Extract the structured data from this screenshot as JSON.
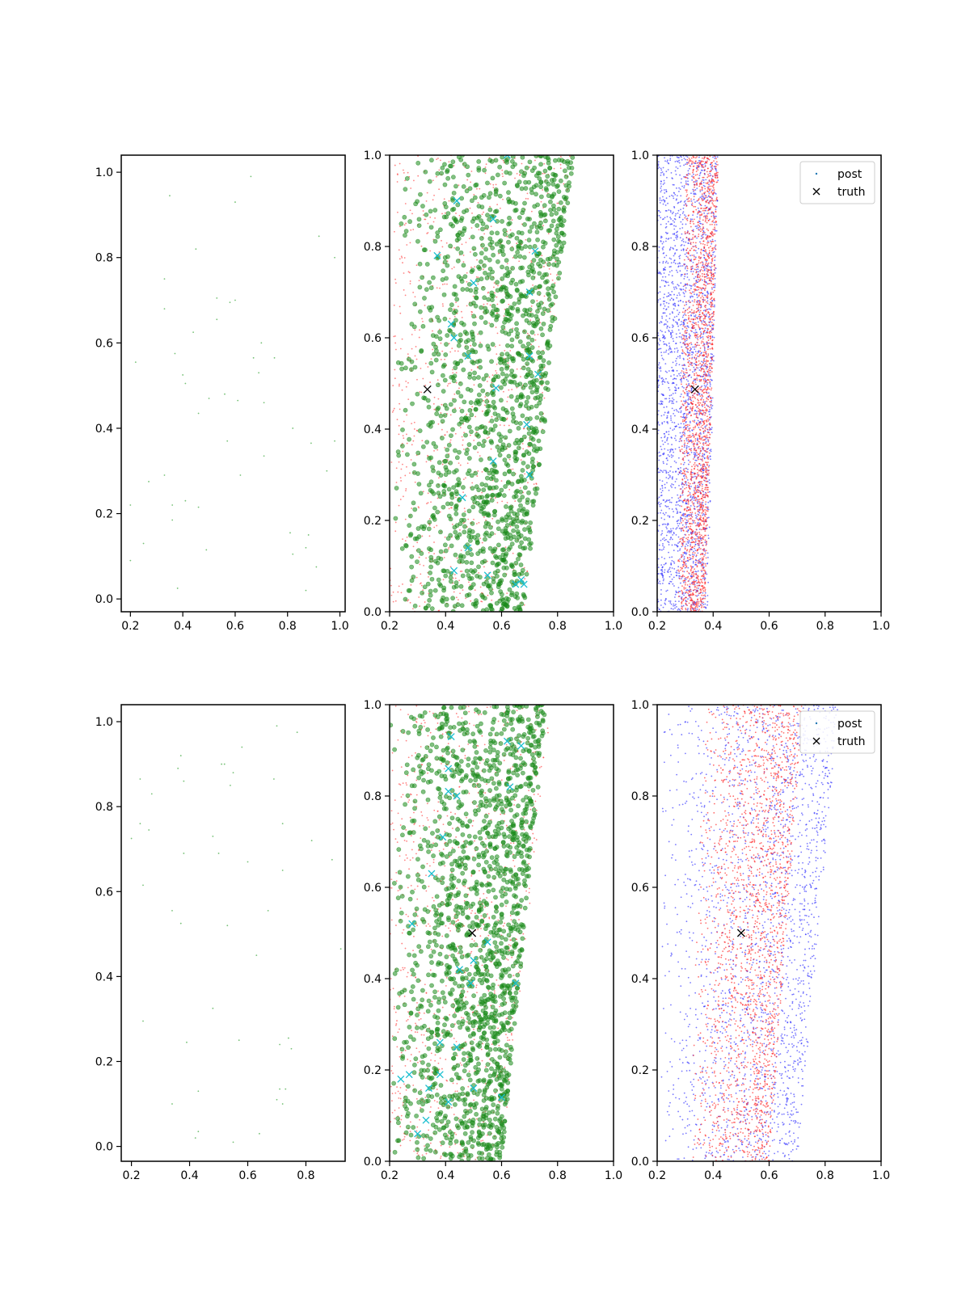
{
  "chart_data": [
    {
      "type": "scatter",
      "row": 0,
      "col": 0,
      "xlim": [
        0.165,
        1.02
      ],
      "ylim": [
        -0.03,
        1.04
      ],
      "xticks": [
        0.2,
        0.4,
        0.6,
        0.8,
        1.0
      ],
      "xtick_labels": [
        "0.2",
        "0.4",
        "0.6",
        "0.8",
        "1.0"
      ],
      "yticks": [
        0.0,
        0.2,
        0.4,
        0.6,
        0.8,
        1.0
      ],
      "ytick_labels": [
        "0.0",
        "0.2",
        "0.4",
        "0.6",
        "0.8",
        "1.0"
      ],
      "series": [
        {
          "color": "#2ca02c",
          "marker": "dot",
          "points": [
            [
              0.66,
              0.99
            ],
            [
              0.35,
              0.945
            ],
            [
              0.6,
              0.93
            ],
            [
              0.92,
              0.85
            ],
            [
              0.98,
              0.8
            ],
            [
              0.45,
              0.82
            ],
            [
              0.33,
              0.75
            ],
            [
              0.53,
              0.705
            ],
            [
              0.58,
              0.695
            ],
            [
              0.6,
              0.7
            ],
            [
              0.33,
              0.68
            ],
            [
              0.53,
              0.655
            ],
            [
              0.44,
              0.625
            ],
            [
              0.7,
              0.6
            ],
            [
              0.37,
              0.575
            ],
            [
              0.67,
              0.565
            ],
            [
              0.75,
              0.565
            ],
            [
              0.22,
              0.555
            ],
            [
              0.69,
              0.53
            ],
            [
              0.4,
              0.525
            ],
            [
              0.41,
              0.505
            ],
            [
              0.56,
              0.48
            ],
            [
              0.5,
              0.47
            ],
            [
              0.61,
              0.465
            ],
            [
              0.71,
              0.46
            ],
            [
              0.46,
              0.435
            ],
            [
              0.82,
              0.4
            ],
            [
              0.57,
              0.37
            ],
            [
              0.89,
              0.365
            ],
            [
              0.98,
              0.37
            ],
            [
              0.71,
              0.335
            ],
            [
              0.95,
              0.3
            ],
            [
              0.33,
              0.29
            ],
            [
              0.62,
              0.29
            ],
            [
              0.27,
              0.275
            ],
            [
              0.41,
              0.23
            ],
            [
              0.36,
              0.22
            ],
            [
              0.46,
              0.215
            ],
            [
              0.2,
              0.22
            ],
            [
              0.36,
              0.185
            ],
            [
              0.81,
              0.155
            ],
            [
              0.88,
              0.15
            ],
            [
              0.25,
              0.13
            ],
            [
              0.87,
              0.12
            ],
            [
              0.49,
              0.115
            ],
            [
              0.82,
              0.105
            ],
            [
              0.2,
              0.09
            ],
            [
              0.91,
              0.075
            ],
            [
              0.38,
              0.025
            ],
            [
              0.87,
              0.02
            ]
          ]
        }
      ]
    },
    {
      "type": "scatter",
      "row": 0,
      "col": 1,
      "xlim": [
        0.2,
        1.0
      ],
      "ylim": [
        0.0,
        1.0
      ],
      "xticks": [
        0.2,
        0.4,
        0.6,
        0.8,
        1.0
      ],
      "xtick_labels": [
        "0.2",
        "0.4",
        "0.6",
        "0.8",
        "1.0"
      ],
      "yticks": [
        0.0,
        0.2,
        0.4,
        0.6,
        0.8,
        1.0
      ],
      "ytick_labels": [
        "0.0",
        "0.2",
        "0.4",
        "0.6",
        "0.8",
        "1.0"
      ],
      "series": [
        {
          "color": "#ff4040",
          "marker": "dot",
          "cloud": {
            "n": 900,
            "yrange": [
              0.0,
              1.0
            ],
            "left": [
              0.2,
              0.22
            ],
            "right": [
              0.68,
              0.85
            ],
            "seed": 11
          }
        },
        {
          "color": "#1a8a1a",
          "marker": "circle",
          "cloud": {
            "n": 1500,
            "yrange": [
              0.0,
              1.0
            ],
            "left": [
              0.2,
              0.22
            ],
            "right": [
              0.68,
              0.86
            ],
            "skew": 0.55,
            "seed": 12
          }
        },
        {
          "color": "#17becf",
          "marker": "x",
          "points": [
            [
              0.37,
              0.78
            ],
            [
              0.44,
              0.9
            ],
            [
              0.57,
              0.86
            ],
            [
              0.62,
              1.0
            ],
            [
              0.72,
              0.79
            ],
            [
              0.5,
              0.72
            ],
            [
              0.7,
              0.7
            ],
            [
              0.42,
              0.63
            ],
            [
              0.48,
              0.56
            ],
            [
              0.7,
              0.56
            ],
            [
              0.43,
              0.6
            ],
            [
              0.58,
              0.49
            ],
            [
              0.73,
              0.52
            ],
            [
              0.69,
              0.41
            ],
            [
              0.57,
              0.33
            ],
            [
              0.7,
              0.3
            ],
            [
              0.48,
              0.14
            ],
            [
              0.55,
              0.08
            ],
            [
              0.43,
              0.09
            ],
            [
              0.67,
              0.07
            ],
            [
              0.65,
              0.06
            ],
            [
              0.68,
              0.06
            ],
            [
              0.46,
              0.25
            ]
          ]
        },
        {
          "color": "#000000",
          "marker": "x",
          "points": [
            [
              0.335,
              0.487
            ]
          ]
        }
      ]
    },
    {
      "type": "scatter",
      "row": 0,
      "col": 2,
      "xlim": [
        0.2,
        1.0
      ],
      "ylim": [
        0.0,
        1.0
      ],
      "xticks": [
        0.2,
        0.4,
        0.6,
        0.8,
        1.0
      ],
      "xtick_labels": [
        "0.2",
        "0.4",
        "0.6",
        "0.8",
        "1.0"
      ],
      "yticks": [
        0.0,
        0.2,
        0.4,
        0.6,
        0.8,
        1.0
      ],
      "ytick_labels": [
        "0.0",
        "0.2",
        "0.4",
        "0.6",
        "0.8",
        "1.0"
      ],
      "legend": {
        "placement": "top-right",
        "entries": [
          {
            "label": "post",
            "color": "#1f77b4",
            "marker": "dot"
          },
          {
            "label": "truth",
            "color": "#000000",
            "marker": "x"
          }
        ]
      },
      "series": [
        {
          "color": "#3030ff",
          "marker": "dot",
          "cloud": {
            "n": 2300,
            "yrange": [
              0.0,
              1.0
            ],
            "left": [
              0.2,
              0.2
            ],
            "right": [
              0.38,
              0.42
            ],
            "seed": 21
          }
        },
        {
          "color": "#ff2020",
          "marker": "dot",
          "cloud": {
            "n": 2000,
            "yrange": [
              0.0,
              1.0
            ],
            "left": [
              0.27,
              0.3
            ],
            "right": [
              0.37,
              0.42
            ],
            "skew": 0.7,
            "seed": 22
          }
        },
        {
          "color": "#000000",
          "marker": "x",
          "points": [
            [
              0.335,
              0.487
            ]
          ]
        }
      ]
    },
    {
      "type": "scatter",
      "row": 1,
      "col": 0,
      "xlim": [
        0.165,
        0.935
      ],
      "ylim": [
        -0.035,
        1.04
      ],
      "xticks": [
        0.2,
        0.4,
        0.6,
        0.8
      ],
      "xtick_labels": [
        "0.2",
        "0.4",
        "0.6",
        "0.8"
      ],
      "yticks": [
        0.0,
        0.2,
        0.4,
        0.6,
        0.8,
        1.0
      ],
      "ytick_labels": [
        "0.0",
        "0.2",
        "0.4",
        "0.6",
        "0.8",
        "1.0"
      ],
      "series": [
        {
          "color": "#2ca02c",
          "marker": "dot",
          "points": [
            [
              0.7,
              0.99
            ],
            [
              0.77,
              0.975
            ],
            [
              0.58,
              0.94
            ],
            [
              0.37,
              0.92
            ],
            [
              0.51,
              0.9
            ],
            [
              0.36,
              0.89
            ],
            [
              0.52,
              0.9
            ],
            [
              0.55,
              0.88
            ],
            [
              0.23,
              0.865
            ],
            [
              0.38,
              0.86
            ],
            [
              0.69,
              0.865
            ],
            [
              0.54,
              0.85
            ],
            [
              0.27,
              0.83
            ],
            [
              0.72,
              0.76
            ],
            [
              0.23,
              0.76
            ],
            [
              0.26,
              0.745
            ],
            [
              0.48,
              0.73
            ],
            [
              0.2,
              0.725
            ],
            [
              0.82,
              0.72
            ],
            [
              0.38,
              0.69
            ],
            [
              0.5,
              0.69
            ],
            [
              0.6,
              0.67
            ],
            [
              0.89,
              0.675
            ],
            [
              0.72,
              0.65
            ],
            [
              0.24,
              0.615
            ],
            [
              0.34,
              0.555
            ],
            [
              0.67,
              0.555
            ],
            [
              0.37,
              0.525
            ],
            [
              0.53,
              0.52
            ],
            [
              0.92,
              0.465
            ],
            [
              0.63,
              0.45
            ],
            [
              0.48,
              0.325
            ],
            [
              0.24,
              0.295
            ],
            [
              0.39,
              0.245
            ],
            [
              0.57,
              0.25
            ],
            [
              0.71,
              0.24
            ],
            [
              0.74,
              0.255
            ],
            [
              0.75,
              0.23
            ],
            [
              0.71,
              0.135
            ],
            [
              0.73,
              0.135
            ],
            [
              0.43,
              0.13
            ],
            [
              0.7,
              0.11
            ],
            [
              0.72,
              0.1
            ],
            [
              0.34,
              0.1
            ],
            [
              0.43,
              0.035
            ],
            [
              0.42,
              0.02
            ],
            [
              0.55,
              0.01
            ],
            [
              0.64,
              0.03
            ]
          ]
        }
      ]
    },
    {
      "type": "scatter",
      "row": 1,
      "col": 1,
      "xlim": [
        0.2,
        1.0
      ],
      "ylim": [
        0.0,
        1.0
      ],
      "xticks": [
        0.2,
        0.4,
        0.6,
        0.8,
        1.0
      ],
      "xtick_labels": [
        "0.2",
        "0.4",
        "0.6",
        "0.8",
        "1.0"
      ],
      "yticks": [
        0.0,
        0.2,
        0.4,
        0.6,
        0.8,
        1.0
      ],
      "ytick_labels": [
        "0.0",
        "0.2",
        "0.4",
        "0.6",
        "0.8",
        "1.0"
      ],
      "series": [
        {
          "color": "#ff4040",
          "marker": "dot",
          "cloud": {
            "n": 900,
            "yrange": [
              0.0,
              1.0
            ],
            "left": [
              0.2,
              0.2
            ],
            "right": [
              0.6,
              0.78
            ],
            "seed": 31
          }
        },
        {
          "color": "#1a8a1a",
          "marker": "circle",
          "cloud": {
            "n": 1600,
            "yrange": [
              0.0,
              1.0
            ],
            "left": [
              0.2,
              0.2
            ],
            "right": [
              0.6,
              0.76
            ],
            "skew": 0.55,
            "seed": 32
          }
        },
        {
          "color": "#17becf",
          "marker": "x",
          "points": [
            [
              0.42,
              0.93
            ],
            [
              0.62,
              0.92
            ],
            [
              0.67,
              0.91
            ],
            [
              0.41,
              0.86
            ],
            [
              0.44,
              0.8
            ],
            [
              0.41,
              0.81
            ],
            [
              0.63,
              0.82
            ],
            [
              0.39,
              0.71
            ],
            [
              0.35,
              0.63
            ],
            [
              0.28,
              0.52
            ],
            [
              0.55,
              0.48
            ],
            [
              0.5,
              0.44
            ],
            [
              0.45,
              0.42
            ],
            [
              0.65,
              0.39
            ],
            [
              0.49,
              0.39
            ],
            [
              0.38,
              0.26
            ],
            [
              0.44,
              0.25
            ],
            [
              0.24,
              0.18
            ],
            [
              0.27,
              0.19
            ],
            [
              0.34,
              0.16
            ],
            [
              0.38,
              0.19
            ],
            [
              0.5,
              0.16
            ],
            [
              0.41,
              0.13
            ],
            [
              0.33,
              0.09
            ],
            [
              0.3,
              0.06
            ],
            [
              0.6,
              0.14
            ]
          ]
        },
        {
          "color": "#000000",
          "marker": "x",
          "points": [
            [
              0.495,
              0.5
            ]
          ]
        }
      ]
    },
    {
      "type": "scatter",
      "row": 1,
      "col": 2,
      "xlim": [
        0.2,
        1.0
      ],
      "ylim": [
        0.0,
        1.0
      ],
      "xticks": [
        0.2,
        0.4,
        0.6,
        0.8,
        1.0
      ],
      "xtick_labels": [
        "0.2",
        "0.4",
        "0.6",
        "0.8",
        "1.0"
      ],
      "yticks": [
        0.0,
        0.2,
        0.4,
        0.6,
        0.8,
        1.0
      ],
      "ytick_labels": [
        "0.0",
        "0.2",
        "0.4",
        "0.6",
        "0.8",
        "1.0"
      ],
      "legend": {
        "placement": "top-right",
        "entries": [
          {
            "label": "post",
            "color": "#1f77b4",
            "marker": "dot"
          },
          {
            "label": "truth",
            "color": "#000000",
            "marker": "x"
          }
        ]
      },
      "series": [
        {
          "color": "#3030ff",
          "marker": "dot",
          "cloud": {
            "n": 2100,
            "yrange": [
              0.0,
              1.0
            ],
            "left": [
              0.2,
              0.22
            ],
            "right": [
              0.7,
              0.85
            ],
            "skew": 0.6,
            "seed": 41
          }
        },
        {
          "color": "#ff2020",
          "marker": "dot",
          "cloud": {
            "n": 2000,
            "yrange": [
              0.0,
              1.0
            ],
            "left": [
              0.3,
              0.36
            ],
            "right": [
              0.6,
              0.72
            ],
            "skew": 0.6,
            "seed": 42
          }
        },
        {
          "color": "#000000",
          "marker": "x",
          "points": [
            [
              0.5,
              0.5
            ]
          ]
        }
      ]
    }
  ]
}
